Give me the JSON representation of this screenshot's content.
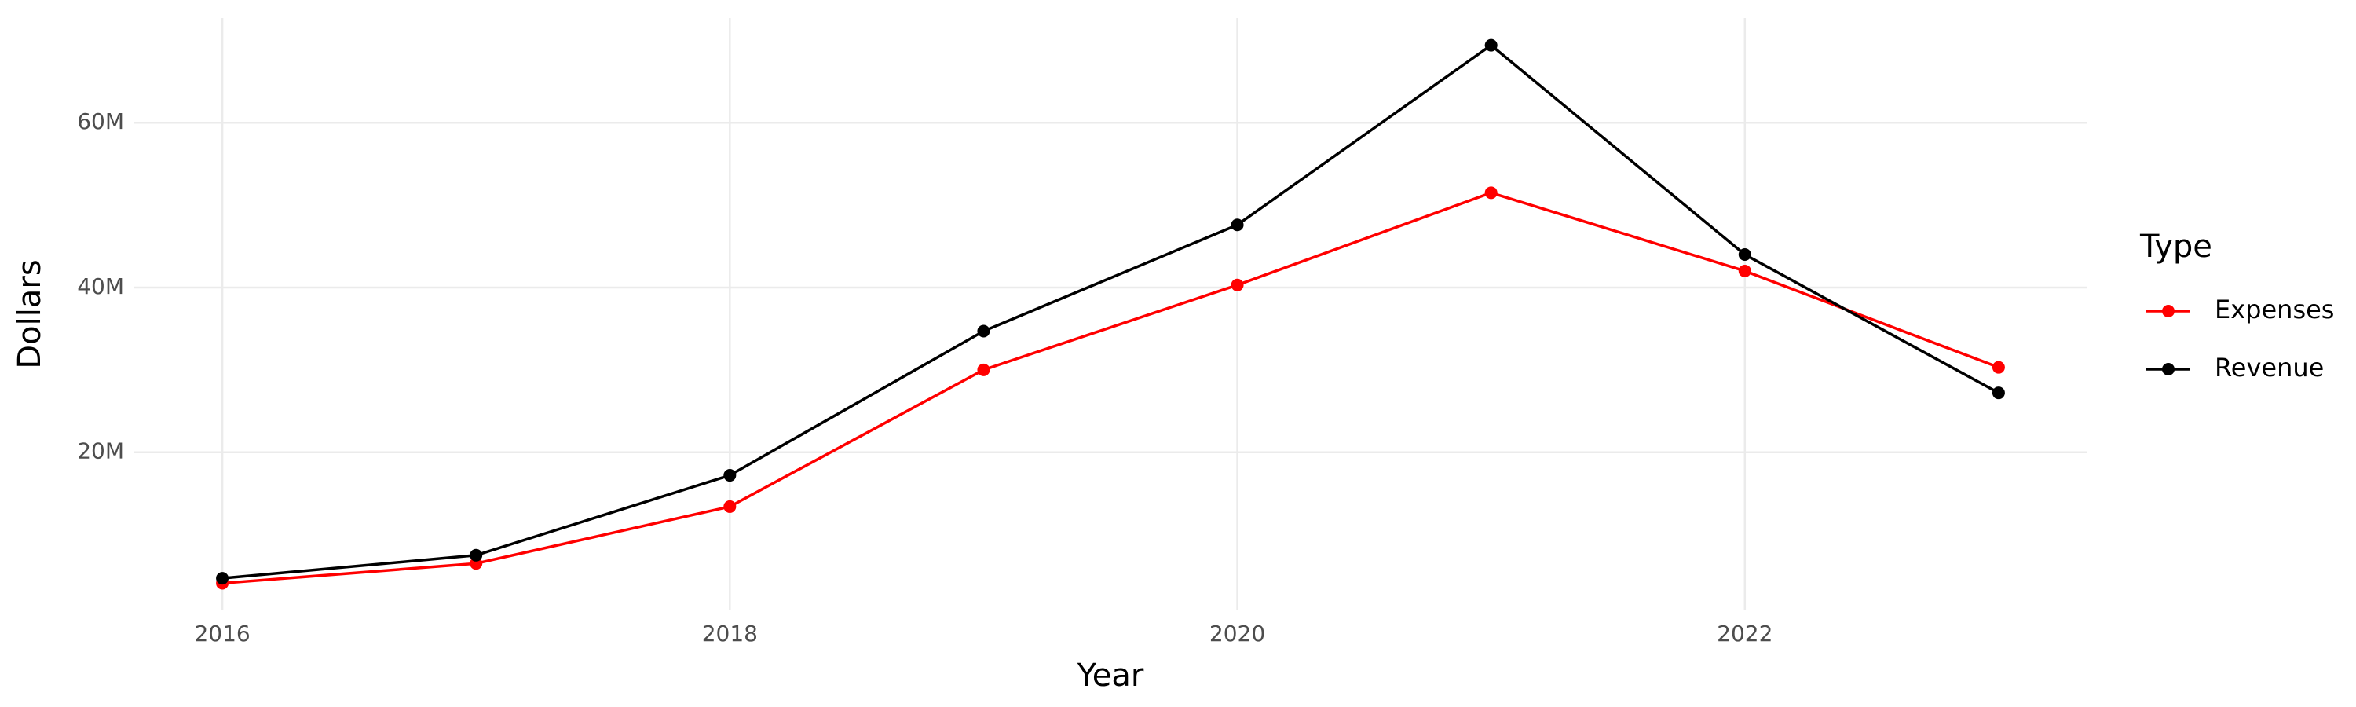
{
  "chart_data": {
    "type": "line",
    "x_label": "Year",
    "y_label": "Dollars",
    "legend_title": "Type",
    "x": [
      2016,
      2017,
      2018,
      2019,
      2020,
      2021,
      2022,
      2023
    ],
    "series": [
      {
        "name": "Expenses",
        "color": "#ff0000",
        "values": [
          4100000,
          6500000,
          13400000,
          30000000,
          40300000,
          51500000,
          42000000,
          30300000
        ]
      },
      {
        "name": "Revenue",
        "color": "#000000",
        "values": [
          4700000,
          7500000,
          17200000,
          34700000,
          47600000,
          69400000,
          44000000,
          27200000
        ]
      }
    ],
    "xlim": [
      2015.65,
      2023.35
    ],
    "xticks": [
      2016,
      2018,
      2020,
      2022
    ],
    "ylim": [
      900000,
      72700000
    ],
    "yticks": [
      {
        "value": 20000000,
        "label": "20M"
      },
      {
        "value": 40000000,
        "label": "40M"
      },
      {
        "value": 60000000,
        "label": "60M"
      }
    ],
    "grid": true,
    "legend_position": "right"
  }
}
